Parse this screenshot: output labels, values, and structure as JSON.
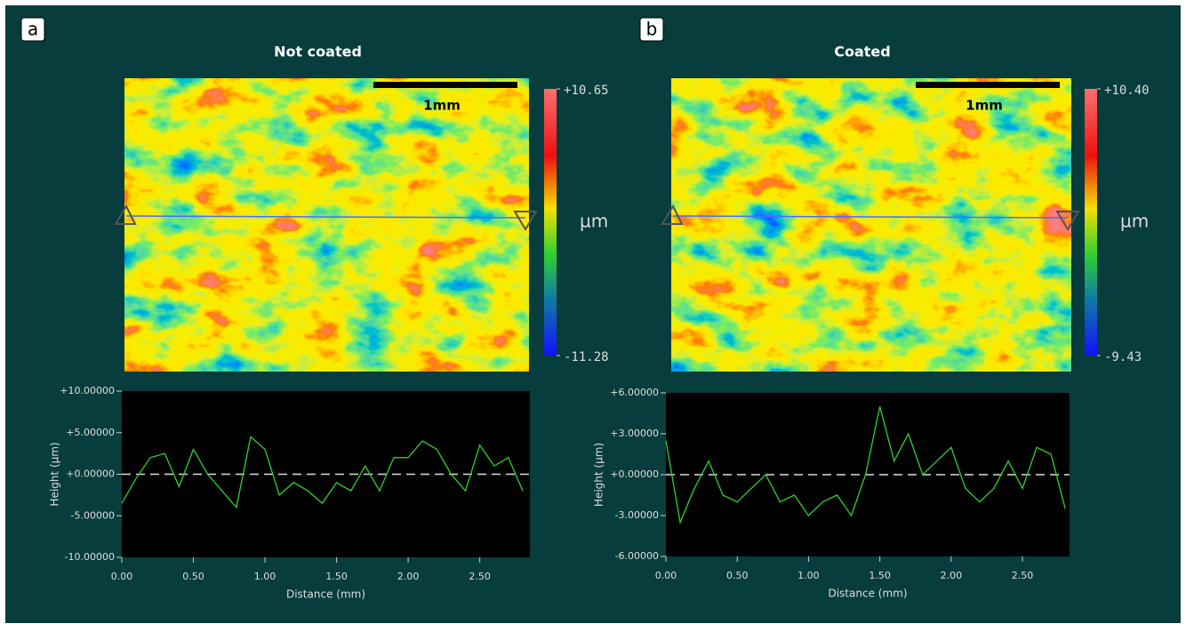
{
  "chart_data": [
    {
      "type": "line",
      "panel": "a",
      "title": "Not coated",
      "scale_bar": "1mm",
      "colorbar": {
        "ticks": [
          {
            "value": 10.65,
            "label": "+10.65"
          },
          {
            "value": -11.28,
            "label": "-11.28"
          }
        ],
        "unit": "µm"
      },
      "xlabel": "Distance (mm)",
      "ylabel": "Height (µm)",
      "xlim": [
        0,
        2.85
      ],
      "ylim": [
        -10,
        10
      ],
      "xticks": [
        {
          "value": 0,
          "label": "0.00"
        },
        {
          "value": 0.5,
          "label": "0.50"
        },
        {
          "value": 1,
          "label": "1.00"
        },
        {
          "value": 1.5,
          "label": "1.50"
        },
        {
          "value": 2,
          "label": "2.00"
        },
        {
          "value": 2.5,
          "label": "2.50"
        }
      ],
      "yticks": [
        {
          "value": 10,
          "label": "+10.00000"
        },
        {
          "value": 5,
          "label": "+5.00000"
        },
        {
          "value": 0,
          "label": "+0.00000"
        },
        {
          "value": -5,
          "label": "-5.00000"
        },
        {
          "value": -10,
          "label": "-10.00000"
        }
      ],
      "x": [
        0,
        0.1,
        0.2,
        0.3,
        0.4,
        0.5,
        0.6,
        0.7,
        0.8,
        0.9,
        1.0,
        1.1,
        1.2,
        1.3,
        1.4,
        1.5,
        1.6,
        1.7,
        1.8,
        1.9,
        2.0,
        2.1,
        2.2,
        2.3,
        2.4,
        2.5,
        2.6,
        2.7,
        2.8
      ],
      "series": [
        {
          "color": "#2fd12f",
          "values": [
            -3.5,
            -0.5,
            2,
            2.5,
            -1.5,
            3,
            0,
            -2,
            -4,
            4.5,
            3,
            -2.5,
            -1,
            -2,
            -3.5,
            -1,
            -2,
            1,
            -2,
            2,
            2,
            4,
            3,
            0,
            -2,
            3.5,
            1,
            2,
            -2
          ]
        }
      ]
    },
    {
      "type": "line",
      "panel": "b",
      "title": "Coated",
      "scale_bar": "1mm",
      "colorbar": {
        "ticks": [
          {
            "value": 10.4,
            "label": "+10.40"
          },
          {
            "value": -9.43,
            "label": "-9.43"
          }
        ],
        "unit": "µm"
      },
      "xlabel": "Distance (mm)",
      "ylabel": "Height (µm)",
      "xlim": [
        0,
        2.83
      ],
      "ylim": [
        -6,
        6
      ],
      "xticks": [
        {
          "value": 0,
          "label": "0.00"
        },
        {
          "value": 0.5,
          "label": "0.50"
        },
        {
          "value": 1,
          "label": "1.00"
        },
        {
          "value": 1.5,
          "label": "1.50"
        },
        {
          "value": 2,
          "label": "2.00"
        },
        {
          "value": 2.5,
          "label": "2.50"
        }
      ],
      "yticks": [
        {
          "value": 6,
          "label": "+6.00000"
        },
        {
          "value": 3,
          "label": "+3.00000"
        },
        {
          "value": 0,
          "label": "+0.00000"
        },
        {
          "value": -3,
          "label": "-3.00000"
        },
        {
          "value": -6,
          "label": "-6.00000"
        }
      ],
      "x": [
        0,
        0.1,
        0.2,
        0.3,
        0.4,
        0.5,
        0.6,
        0.7,
        0.8,
        0.9,
        1.0,
        1.1,
        1.2,
        1.3,
        1.4,
        1.5,
        1.6,
        1.7,
        1.8,
        1.9,
        2.0,
        2.1,
        2.2,
        2.3,
        2.4,
        2.5,
        2.6,
        2.7,
        2.8
      ],
      "series": [
        {
          "color": "#2fd12f",
          "values": [
            2.5,
            -3.5,
            -1,
            1,
            -1.5,
            -2,
            -1,
            0,
            -2,
            -1.5,
            -3,
            -2,
            -1.5,
            -3,
            0,
            5,
            1,
            3,
            0,
            1,
            2,
            -1,
            -2,
            -1,
            1,
            -1,
            2,
            1.5,
            -2.5
          ]
        }
      ]
    }
  ]
}
